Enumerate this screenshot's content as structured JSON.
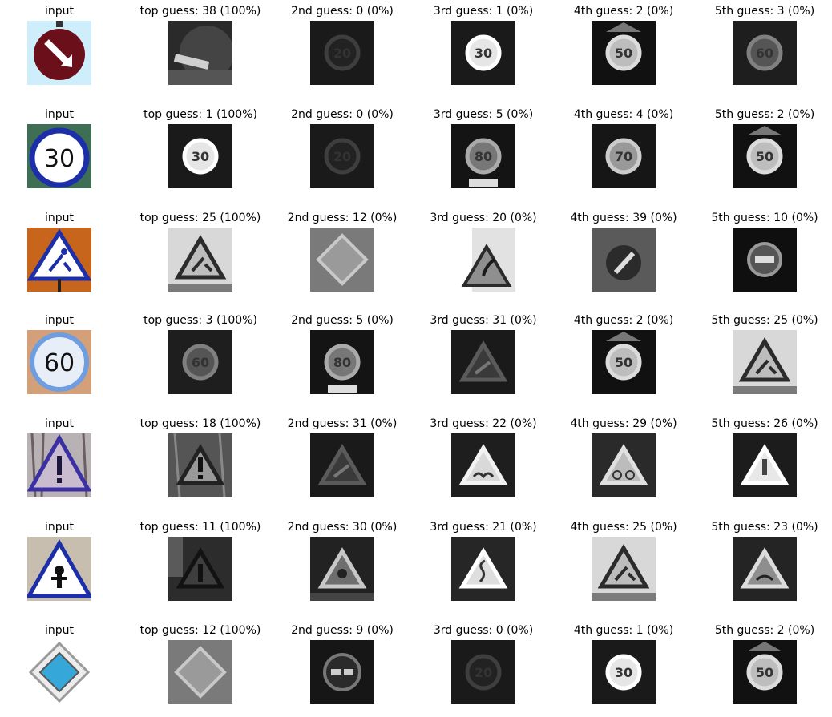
{
  "rows": [
    {
      "cells": [
        {
          "title": "input",
          "img": "input-keep-right",
          "kind": "color"
        },
        {
          "title": "top guess: 38 (100%)",
          "img": "keep-right",
          "kind": "gray"
        },
        {
          "title": "2nd guess: 0 (0%)",
          "img": "speed-limit-20",
          "kind": "gray"
        },
        {
          "title": "3rd guess: 1 (0%)",
          "img": "speed-limit-30",
          "kind": "gray"
        },
        {
          "title": "4th guess: 2 (0%)",
          "img": "speed-limit-50",
          "kind": "gray"
        },
        {
          "title": "5th guess: 3 (0%)",
          "img": "speed-limit-60",
          "kind": "gray"
        }
      ]
    },
    {
      "cells": [
        {
          "title": "input",
          "img": "input-speed-limit-30",
          "kind": "color"
        },
        {
          "title": "top guess: 1 (100%)",
          "img": "speed-limit-30",
          "kind": "gray"
        },
        {
          "title": "2nd guess: 0 (0%)",
          "img": "speed-limit-20",
          "kind": "gray"
        },
        {
          "title": "3rd guess: 5 (0%)",
          "img": "speed-limit-80",
          "kind": "gray"
        },
        {
          "title": "4th guess: 4 (0%)",
          "img": "speed-limit-70",
          "kind": "gray"
        },
        {
          "title": "5th guess: 2 (0%)",
          "img": "speed-limit-50",
          "kind": "gray"
        }
      ]
    },
    {
      "cells": [
        {
          "title": "input",
          "img": "input-road-work",
          "kind": "color"
        },
        {
          "title": "top guess: 25 (100%)",
          "img": "road-work",
          "kind": "gray"
        },
        {
          "title": "2nd guess: 12 (0%)",
          "img": "priority-road",
          "kind": "gray"
        },
        {
          "title": "3rd guess: 20 (0%)",
          "img": "dangerous-curve-right",
          "kind": "gray"
        },
        {
          "title": "4th guess: 39 (0%)",
          "img": "keep-left",
          "kind": "gray"
        },
        {
          "title": "5th guess: 10 (0%)",
          "img": "no-passing-trucks",
          "kind": "gray"
        }
      ]
    },
    {
      "cells": [
        {
          "title": "input",
          "img": "input-speed-limit-60",
          "kind": "color"
        },
        {
          "title": "top guess: 3 (100%)",
          "img": "speed-limit-60",
          "kind": "gray"
        },
        {
          "title": "2nd guess: 5 (0%)",
          "img": "speed-limit-80",
          "kind": "gray"
        },
        {
          "title": "3rd guess: 31 (0%)",
          "img": "wild-animals",
          "kind": "gray"
        },
        {
          "title": "4th guess: 2 (0%)",
          "img": "speed-limit-50",
          "kind": "gray"
        },
        {
          "title": "5th guess: 25 (0%)",
          "img": "road-work",
          "kind": "gray"
        }
      ]
    },
    {
      "cells": [
        {
          "title": "input",
          "img": "input-general-caution",
          "kind": "color"
        },
        {
          "title": "top guess: 18 (100%)",
          "img": "general-caution",
          "kind": "gray"
        },
        {
          "title": "2nd guess: 31 (0%)",
          "img": "wild-animals",
          "kind": "gray"
        },
        {
          "title": "3rd guess: 22 (0%)",
          "img": "bumpy-road",
          "kind": "gray"
        },
        {
          "title": "4th guess: 29 (0%)",
          "img": "bicycles-crossing",
          "kind": "gray"
        },
        {
          "title": "5th guess: 26 (0%)",
          "img": "traffic-signals",
          "kind": "gray"
        }
      ]
    },
    {
      "cells": [
        {
          "title": "input",
          "img": "input-right-of-way",
          "kind": "color"
        },
        {
          "title": "top guess: 11 (100%)",
          "img": "right-of-way",
          "kind": "gray"
        },
        {
          "title": "2nd guess: 30 (0%)",
          "img": "beware-ice-snow",
          "kind": "gray"
        },
        {
          "title": "3rd guess: 21 (0%)",
          "img": "double-curve",
          "kind": "gray"
        },
        {
          "title": "4th guess: 25 (0%)",
          "img": "road-work",
          "kind": "gray"
        },
        {
          "title": "5th guess: 23 (0%)",
          "img": "slippery-road",
          "kind": "gray"
        }
      ]
    },
    {
      "cells": [
        {
          "title": "input",
          "img": "input-priority-road",
          "kind": "color"
        },
        {
          "title": "top guess: 12 (100%)",
          "img": "priority-road",
          "kind": "gray"
        },
        {
          "title": "2nd guess: 9 (0%)",
          "img": "no-passing",
          "kind": "gray"
        },
        {
          "title": "3rd guess: 0 (0%)",
          "img": "speed-limit-20",
          "kind": "gray"
        },
        {
          "title": "4th guess: 1 (0%)",
          "img": "speed-limit-30",
          "kind": "gray"
        },
        {
          "title": "5th guess: 2 (0%)",
          "img": "speed-limit-50",
          "kind": "gray"
        }
      ]
    }
  ],
  "colors": {
    "gray_bg_dark": "#1a1a1a",
    "gray_bg_light": "#d8d8d8",
    "input_maroon": "#6b0f1a",
    "input_blue": "#1c2ea8",
    "input_orange": "#c8651c",
    "input_sky": "#cfeefc",
    "input_cyan": "#35a7d8"
  }
}
